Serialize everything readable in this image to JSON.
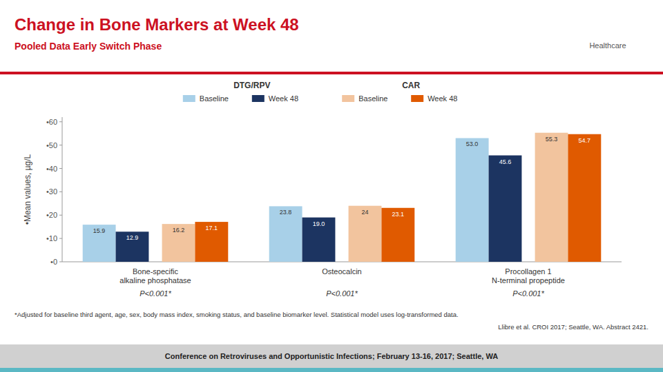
{
  "chart_data": {
    "type": "bar",
    "title": "Change in Bone Markers at Week 48",
    "subtitle": "Pooled Data Early Switch Phase",
    "title_color": "#CC1122",
    "ylabel": "•Mean values, µg/L",
    "categories": [
      "Bone-specific\nalkaline phosphatase",
      "Osteocalcin",
      "Procollagen 1\nN-terminal propeptide"
    ],
    "category_notes": [
      "P<0.001*",
      "P<0.001*",
      "P<0.001*"
    ],
    "series": [
      {
        "name": "Baseline",
        "group": "DTG/RPV",
        "color": "#a8d0e8",
        "values": [
          15.9,
          23.8,
          53.0
        ],
        "value_labels": [
          "15.9",
          "23.8",
          "53.0"
        ]
      },
      {
        "name": "Week 48",
        "group": "DTG/RPV",
        "color": "#1c3461",
        "values": [
          12.9,
          19.0,
          45.6
        ],
        "value_labels": [
          "12.9",
          "19.0",
          "45.6"
        ]
      },
      {
        "name": "Baseline",
        "group": "CAR",
        "color": "#f2c49e",
        "values": [
          16.2,
          24.0,
          55.3
        ]
      },
      {
        "name": "Week 48",
        "group": "CAR",
        "color": "#e05a00",
        "values": [
          17.1,
          23.1,
          54.7
        ]
      }
    ],
    "ylim": [
      0,
      62
    ],
    "yticks": [
      {
        "value": 0,
        "label": "•0"
      },
      {
        "value": 10,
        "label": "•10"
      },
      {
        "value": 20,
        "label": "•20"
      },
      {
        "value": 30,
        "label": "•30"
      },
      {
        "value": 40,
        "label": "•40"
      },
      {
        "value": 50,
        "label": "•50"
      },
      {
        "value": 60,
        "label": "•60"
      }
    ],
    "grid": false,
    "legend": "top",
    "data_labels": true,
    "logo_text": "Healthcare",
    "footnote1": "*Adjusted for baseline third agent, age, sex, body mass index, smoking status, and baseline biomarker level. Statistical model uses log-transformed data.",
    "footnote2": "Llibre et al. CROI 2017; Seattle, WA. Abstract 2421.",
    "footer": "Conference on Retroviruses and Opportunistic Infections; February 13-16, 2017; Seattle, WA"
  }
}
